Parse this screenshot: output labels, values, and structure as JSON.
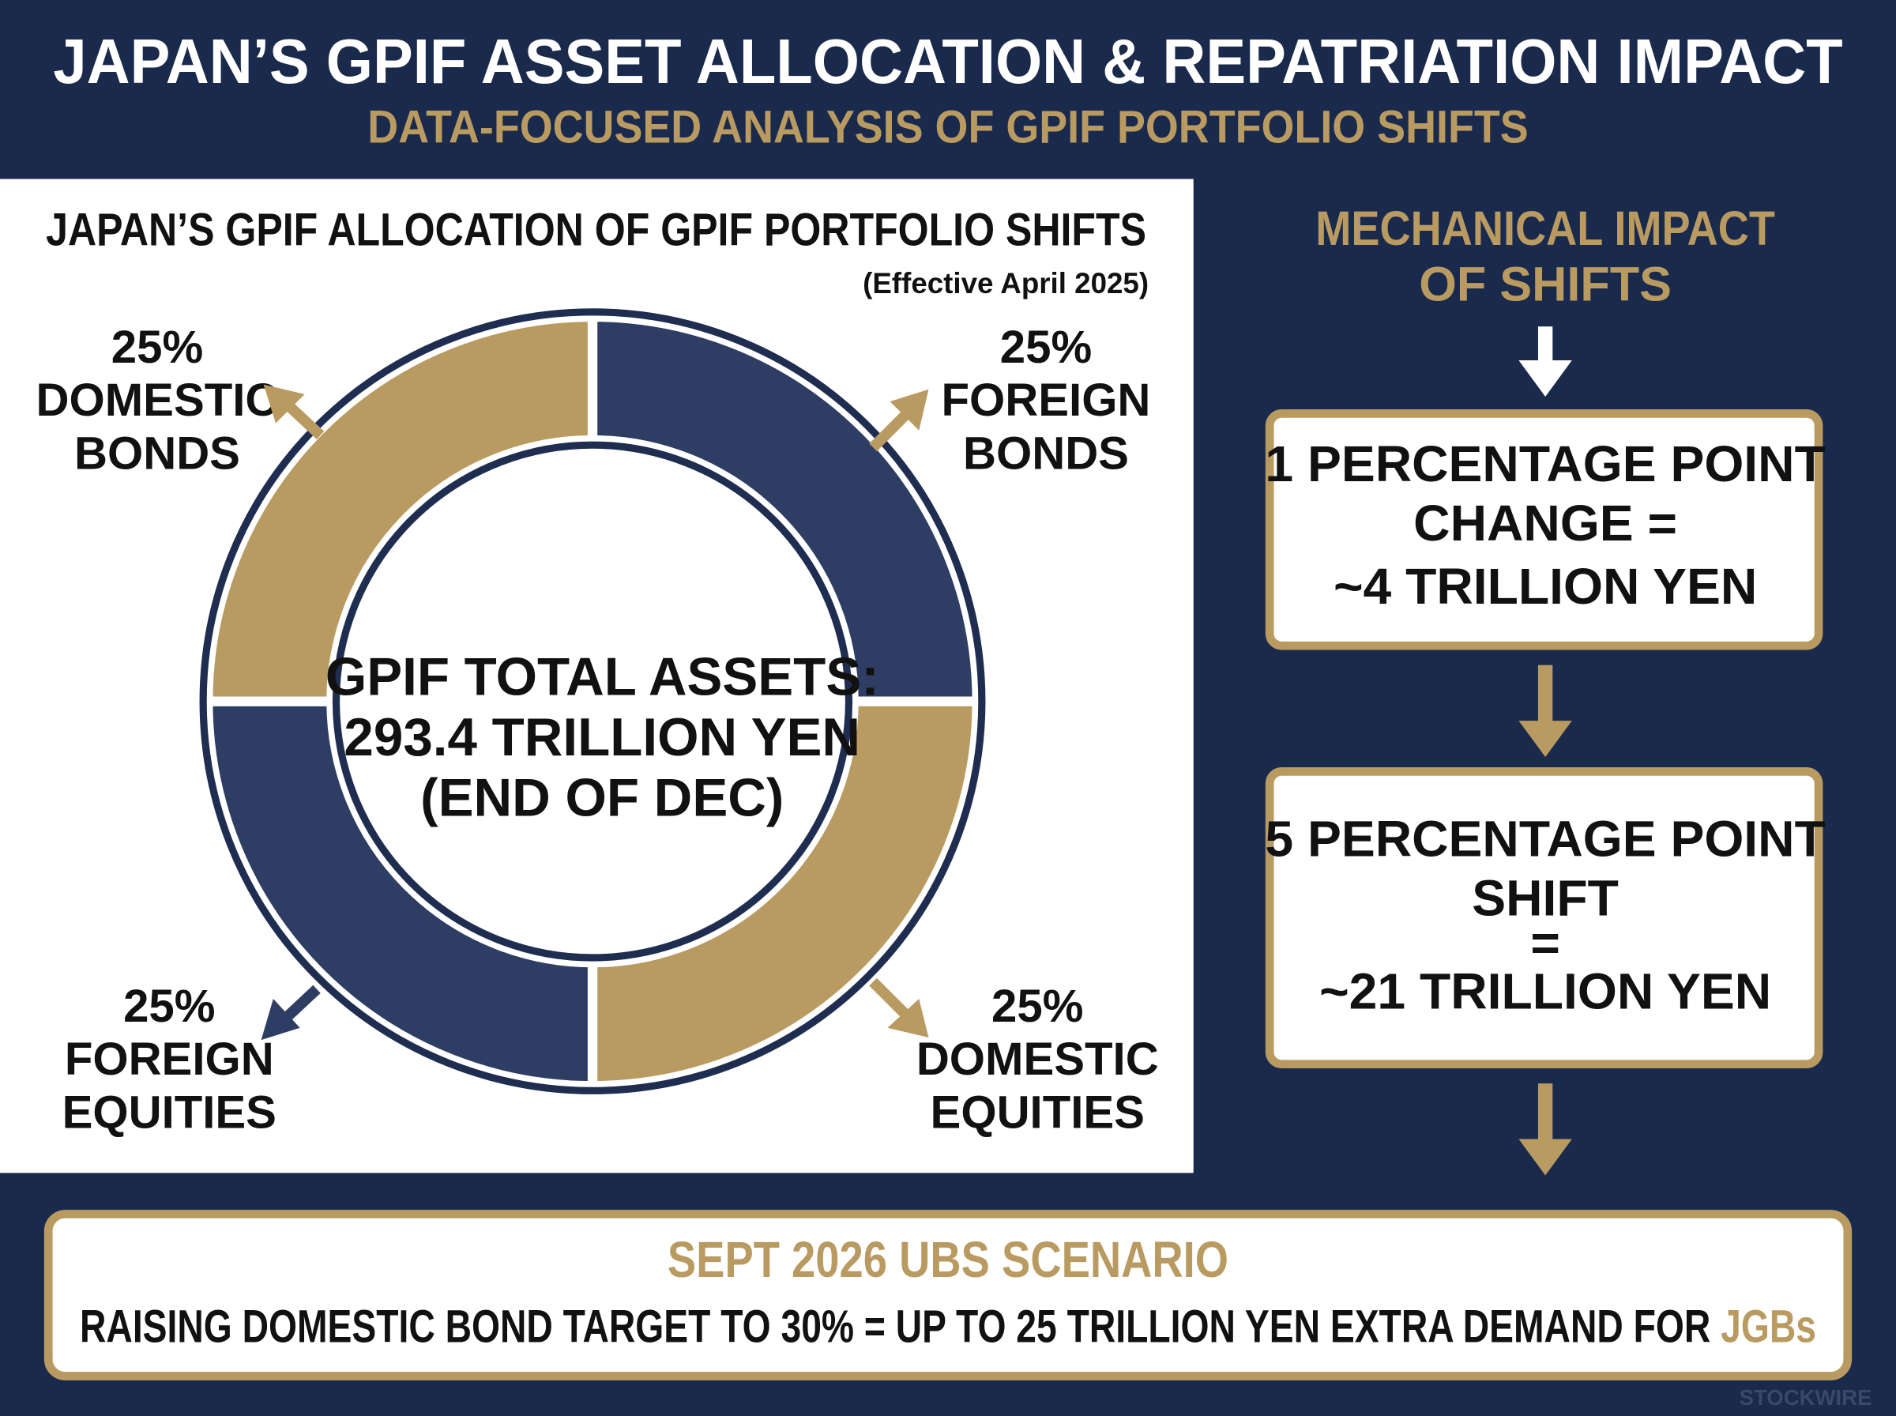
{
  "header": {
    "title": "JAPAN’S GPIF ASSET ALLOCATION & REPATRIATION IMPACT",
    "subtitle": "DATA-FOCUSED ANALYSIS OF GPIF PORTFOLIO SHIFTS"
  },
  "chart_data": {
    "type": "pie",
    "title": "JAPAN’S GPIF ALLOCATION OF GPIF PORTFOLIO SHIFTS",
    "subtitle": "(Effective April 2025)",
    "categories": [
      "FOREIGN BONDS",
      "DOMESTIC EQUITIES",
      "FOREIGN EQUITIES",
      "DOMESTIC BONDS"
    ],
    "values": [
      25,
      25,
      25,
      25
    ],
    "value_labels": [
      "25%",
      "25%",
      "25%",
      "25%"
    ],
    "colors": [
      "#2e3d63",
      "#b99b62",
      "#2e3d63",
      "#b99b62"
    ],
    "center_label": [
      "GPIF TOTAL ASSETS:",
      "293.4 TRILLION YEN",
      "(END OF DEC)"
    ]
  },
  "impact": {
    "title": [
      "MECHANICAL IMPACT",
      "OF SHIFTS"
    ],
    "box1": [
      "1 PERCENTAGE POINT",
      "CHANGE =",
      "~4 TRILLION YEN"
    ],
    "box2": [
      "5 PERCENTAGE POINT",
      "SHIFT",
      "=",
      "~21 TRILLION YEN"
    ]
  },
  "scenario": {
    "title": "SEPT 2026 UBS SCENARIO",
    "text": "RAISING DOMESTIC BOND TARGET TO 30% = UP TO 25 TRILLION YEN EXTRA DEMAND FOR",
    "highlight": "JGBs"
  },
  "watermark": "STOCKWIRE"
}
